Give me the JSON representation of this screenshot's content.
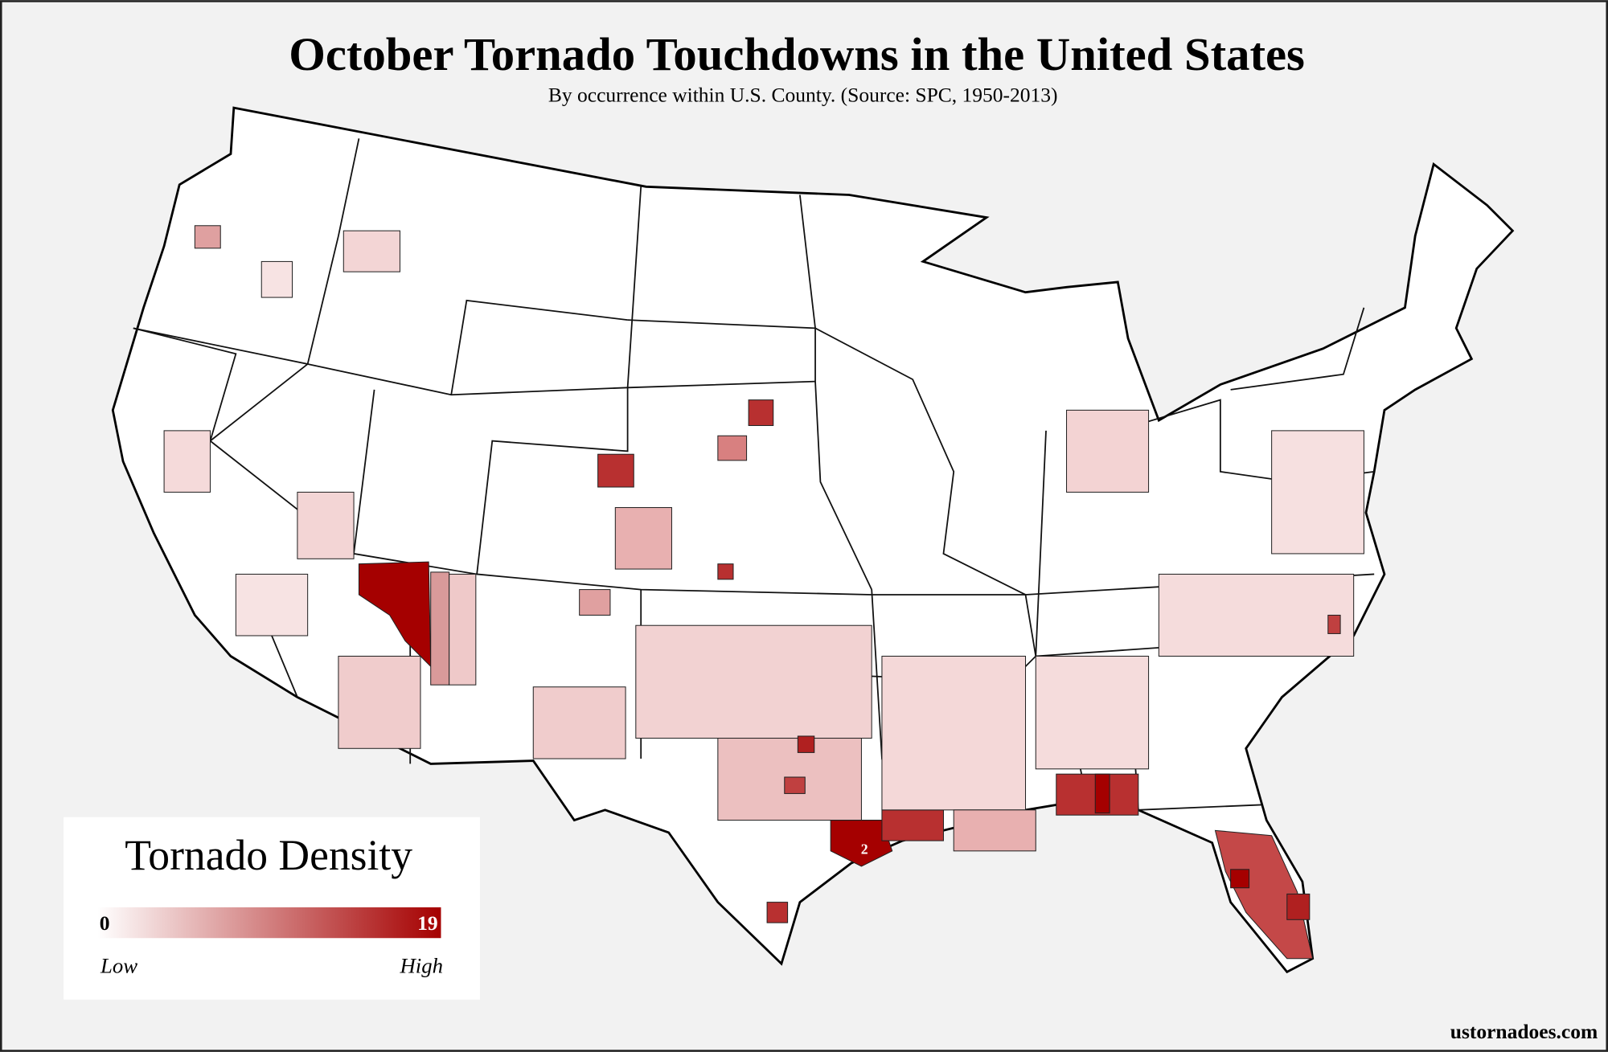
{
  "header": {
    "title": "October Tornado Touchdowns in the United States",
    "subtitle": "By occurrence within U.S. County. (Source: SPC, 1950-2013)"
  },
  "map": {
    "annotation": "2"
  },
  "legend": {
    "title": "Tornado Density",
    "min": 0,
    "max": 19,
    "low_label": "Low",
    "high_label": "High",
    "colors": [
      "#ffffff",
      "#a50000"
    ]
  },
  "footer": {
    "credit": "ustornadoes.com"
  }
}
